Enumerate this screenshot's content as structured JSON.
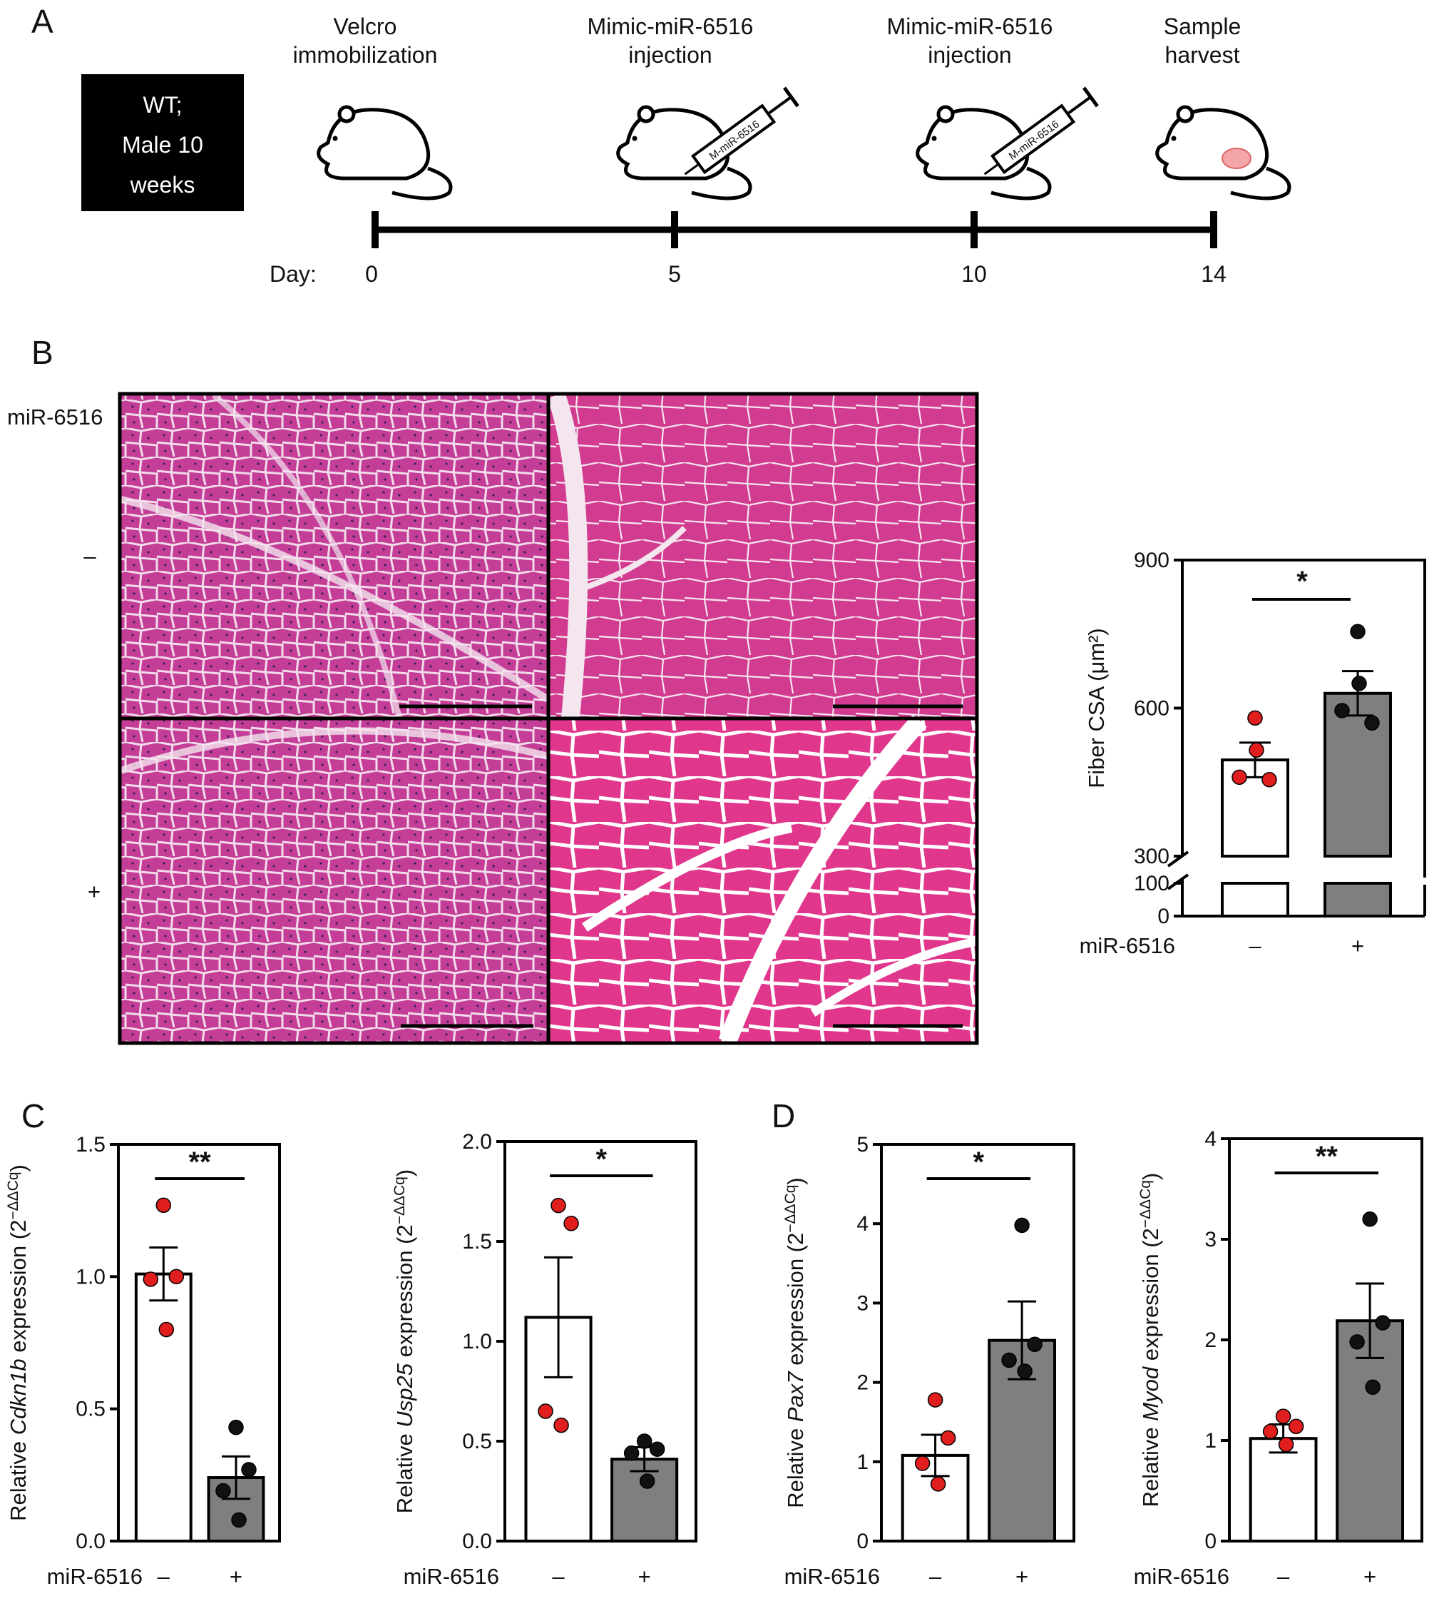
{
  "panel_letters": [
    "A",
    "B",
    "C",
    "D"
  ],
  "timeline": {
    "box_lines": [
      "WT;",
      "Male 10",
      "weeks"
    ],
    "day_label": "Day:",
    "days": [
      0,
      5,
      10,
      14
    ],
    "events": [
      {
        "day": 0,
        "lines": [
          "Velcro",
          "immobilization"
        ],
        "icon": "mouse-icon"
      },
      {
        "day": 5,
        "lines": [
          "Mimic-miR-6516",
          "injection"
        ],
        "icon": "mouse-syringe-icon"
      },
      {
        "day": 10,
        "lines": [
          "Mimic-miR-6516",
          "injection"
        ],
        "icon": "mouse-syringe-icon"
      },
      {
        "day": 14,
        "lines": [
          "Sample",
          "harvest"
        ],
        "icon": "mouse-harvest-icon"
      }
    ],
    "syringe_label": "M-miR-6516"
  },
  "histology": {
    "header": "miR-6516",
    "rows": [
      "–",
      "+"
    ],
    "colors": {
      "stain": "#cc3a9e",
      "stroma": "#f4e6ef"
    }
  },
  "chart_data": [
    {
      "id": "fiber-csa",
      "type": "bar",
      "xlabel": "miR-6516",
      "ylabel": "Fiber CSA (μm²)",
      "categories": [
        "–",
        "+"
      ],
      "values": [
        495,
        630
      ],
      "sem": [
        35,
        45
      ],
      "points": [
        [
          580,
          515,
          460,
          455
        ],
        [
          755,
          650,
          595,
          570
        ]
      ],
      "yticks": [
        0,
        100,
        300,
        600,
        900
      ],
      "broken_axis": {
        "lower": [
          0,
          100
        ],
        "upper": [
          300,
          900
        ]
      },
      "significance": "*"
    },
    {
      "id": "cdkn1b",
      "type": "bar",
      "xlabel": "miR-6516",
      "ylabel_prefix": "Relative ",
      "ylabel_gene": "Cdkn1b",
      "ylabel_suffix": " expression (2",
      "ylabel_exp": "−ΔΔCq",
      "ylabel_close": ")",
      "categories": [
        "–",
        "+"
      ],
      "values": [
        1.01,
        0.24
      ],
      "sem": [
        0.1,
        0.08
      ],
      "points": [
        [
          1.27,
          1.0,
          0.99,
          0.8
        ],
        [
          0.43,
          0.27,
          0.19,
          0.08
        ]
      ],
      "ylim": [
        0,
        1.5
      ],
      "yticks": [
        "0.0",
        "0.5",
        "1.0",
        "1.5"
      ],
      "significance": "**"
    },
    {
      "id": "usp25",
      "type": "bar",
      "xlabel": "miR-6516",
      "ylabel_prefix": "Relative ",
      "ylabel_gene": "Usp25",
      "ylabel_suffix": " expression (2",
      "ylabel_exp": "−ΔΔCq",
      "ylabel_close": ")",
      "categories": [
        "–",
        "+"
      ],
      "values": [
        1.12,
        0.41
      ],
      "sem": [
        0.3,
        0.06
      ],
      "points": [
        [
          1.68,
          1.59,
          0.65,
          0.58
        ],
        [
          0.5,
          0.46,
          0.44,
          0.3
        ]
      ],
      "ylim": [
        0,
        2.0
      ],
      "yticks": [
        "0.0",
        "0.5",
        "1.0",
        "1.5",
        "2.0"
      ],
      "significance": "*"
    },
    {
      "id": "pax7",
      "type": "bar",
      "xlabel": "miR-6516",
      "ylabel_prefix": "Relative ",
      "ylabel_gene": "Pax7",
      "ylabel_suffix": " expression (2",
      "ylabel_exp": "−ΔΔCq",
      "ylabel_close": ")",
      "categories": [
        "–",
        "+"
      ],
      "values": [
        1.08,
        2.53
      ],
      "sem": [
        0.26,
        0.49
      ],
      "points": [
        [
          1.78,
          1.3,
          0.98,
          0.72
        ],
        [
          3.98,
          2.48,
          2.28,
          2.14
        ]
      ],
      "ylim": [
        0,
        5
      ],
      "yticks": [
        "0",
        "1",
        "2",
        "3",
        "4",
        "5"
      ],
      "significance": "*"
    },
    {
      "id": "myod",
      "type": "bar",
      "xlabel": "miR-6516",
      "ylabel_prefix": "Relative ",
      "ylabel_gene": "Myod",
      "ylabel_suffix": " expression (2",
      "ylabel_exp": "−ΔΔCq",
      "ylabel_close": ")",
      "categories": [
        "–",
        "+"
      ],
      "values": [
        1.02,
        2.19
      ],
      "sem": [
        0.14,
        0.37
      ],
      "points": [
        [
          1.24,
          1.14,
          1.09,
          0.96
        ],
        [
          3.2,
          2.17,
          1.98,
          1.53
        ]
      ],
      "ylim": [
        0,
        4
      ],
      "yticks": [
        "0",
        "1",
        "2",
        "3",
        "4"
      ],
      "significance": "**"
    }
  ],
  "colors": {
    "control_points": "#e01e1e",
    "treated_points": "#111111",
    "treated_bar": "#7f7f7f",
    "control_bar": "#ffffff"
  }
}
